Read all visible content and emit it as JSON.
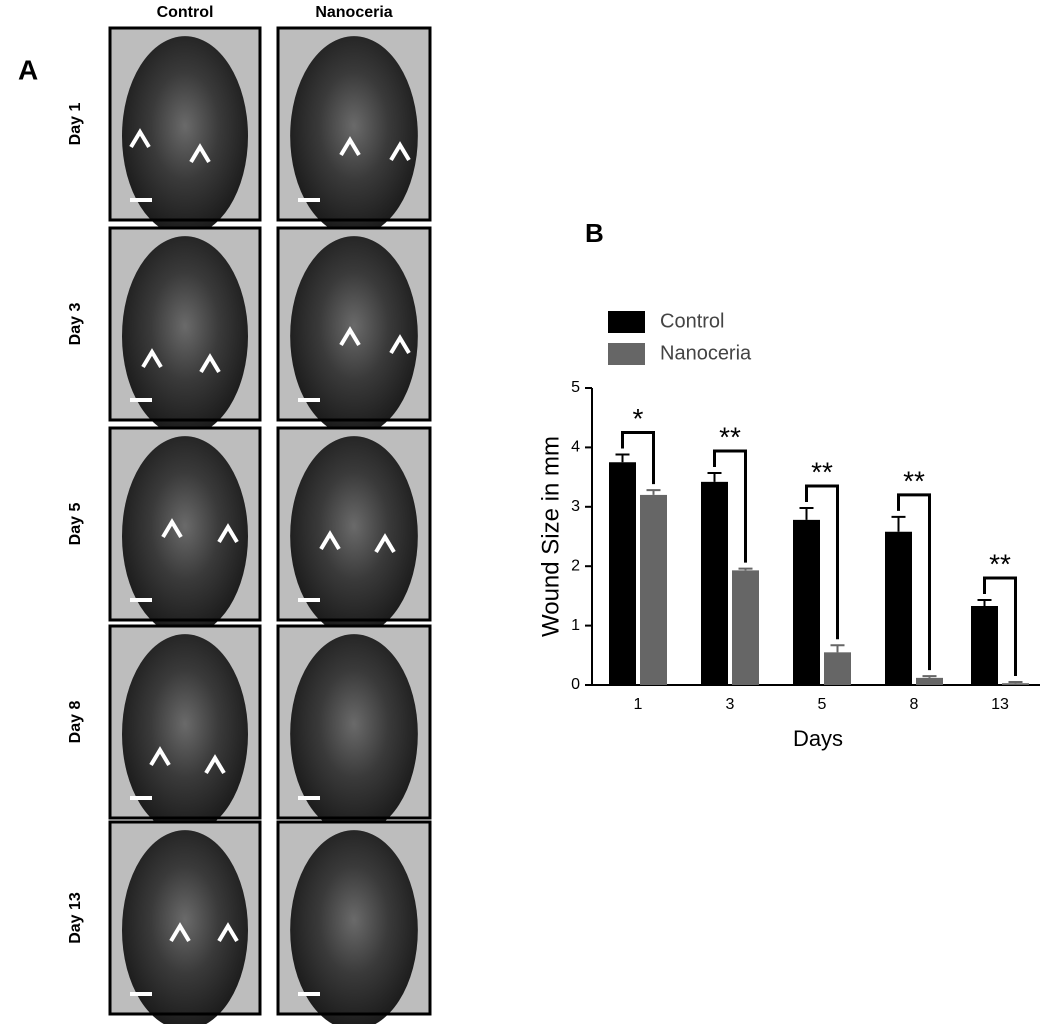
{
  "panel_a": {
    "label": "A",
    "columns": [
      "Control",
      "Nanoceria"
    ],
    "rows": [
      "Day 1",
      "Day 3",
      "Day 5",
      "Day 8",
      "Day 13"
    ]
  },
  "chart_data": {
    "type": "bar",
    "label": "B",
    "ylabel": "Wound Size in mm",
    "xlabel": "Days",
    "categories": [
      "1",
      "3",
      "5",
      "8",
      "13"
    ],
    "series": [
      {
        "name": "Control",
        "color": "#000000",
        "values": [
          3.75,
          3.42,
          2.78,
          2.58,
          1.33
        ],
        "errors": [
          0.13,
          0.15,
          0.2,
          0.25,
          0.1
        ]
      },
      {
        "name": "Nanoceria",
        "color": "#666666",
        "values": [
          3.2,
          1.93,
          0.55,
          0.12,
          0.03
        ],
        "errors": [
          0.08,
          0.03,
          0.12,
          0.03,
          0.02
        ]
      }
    ],
    "annotations": [
      "*",
      "**",
      "**",
      "**",
      "**"
    ],
    "ylim": [
      0,
      5
    ],
    "yticks": [
      0,
      1,
      2,
      3,
      4,
      5
    ]
  }
}
